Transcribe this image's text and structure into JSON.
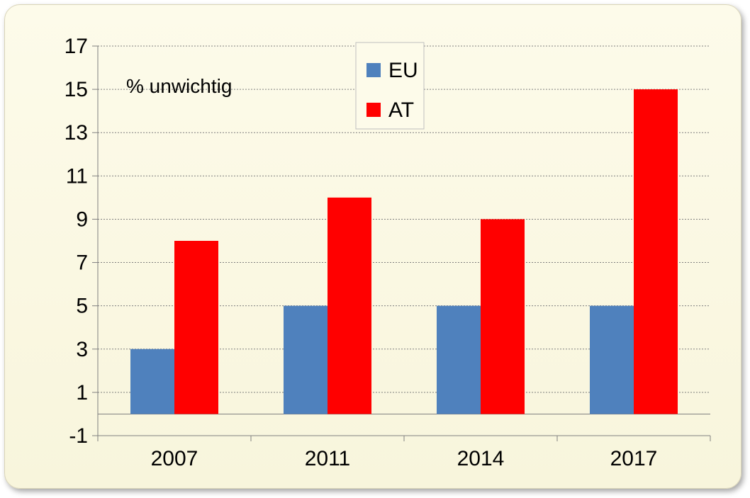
{
  "chart_data": {
    "type": "bar",
    "title": "",
    "xlabel": "",
    "ylabel": "",
    "annotation": "% unwichtig",
    "categories": [
      "2007",
      "2011",
      "2014",
      "2017"
    ],
    "series": [
      {
        "name": "EU",
        "color": "#4f81bd",
        "values": [
          3,
          5,
          5,
          5
        ]
      },
      {
        "name": "AT",
        "color": "#ff0000",
        "values": [
          8,
          10,
          9,
          15
        ]
      }
    ],
    "ylim": [
      -1,
      17
    ],
    "yticks": [
      -1,
      1,
      3,
      5,
      7,
      9,
      11,
      13,
      15,
      17
    ],
    "grid": true,
    "legend_position": "top-center"
  }
}
